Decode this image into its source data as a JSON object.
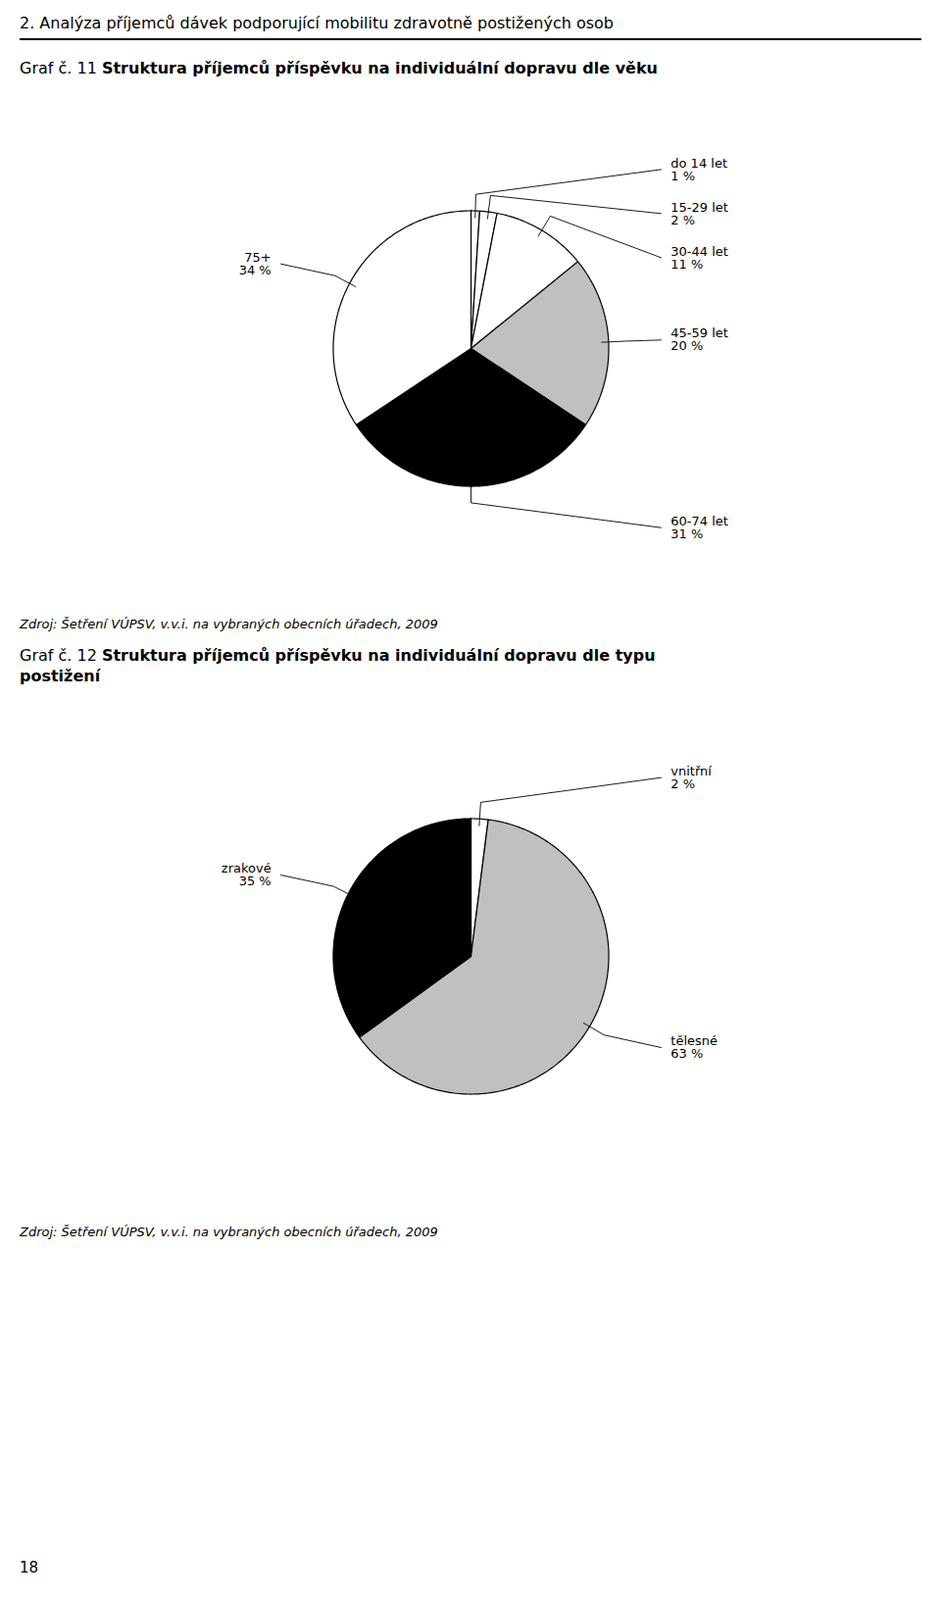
{
  "title": "2. Analýza příjemců dávek podporující mobilitu zdravotně postižených osob",
  "annotations": [
    "18"
  ],
  "chart_data": [
    {
      "type": "pie",
      "title": "Graf č. 11",
      "subtitle": "Struktura příjemců příspěvku na individuální dopravu dle věku",
      "caption": "Zdroj: Šetření VÚPSV, v.v.i. na vybraných obecních úřadech, 2009",
      "categories": [
        "do 14 let",
        "15-29 let",
        "30-44 let",
        "45-59 let",
        "60-74 let",
        "75+"
      ],
      "values": [
        1,
        2,
        11,
        20,
        31,
        34
      ],
      "value_labels": [
        "1 %",
        "2 %",
        "11 %",
        "20 %",
        "31 %",
        "34 %"
      ],
      "colors": [
        "#ffffff",
        "#ffffff",
        "#ffffff",
        "#c0c0c0",
        "#000000",
        "#ffffff"
      ],
      "data_labels": true
    },
    {
      "type": "pie",
      "title": "Graf č. 12",
      "subtitle": "Struktura příjemců příspěvku na individuální dopravu dle typu\npostižení",
      "caption": "Zdroj: Šetření VÚPSV, v.v.i. na vybraných obecních úřadech, 2009",
      "categories": [
        "vnitřní",
        "tělesné",
        "zrakové"
      ],
      "values": [
        2,
        63,
        35
      ],
      "value_labels": [
        "2 %",
        "63 %",
        "35 %"
      ],
      "colors": [
        "#ffffff",
        "#c0c0c0",
        "#000000"
      ],
      "data_labels": true
    }
  ]
}
